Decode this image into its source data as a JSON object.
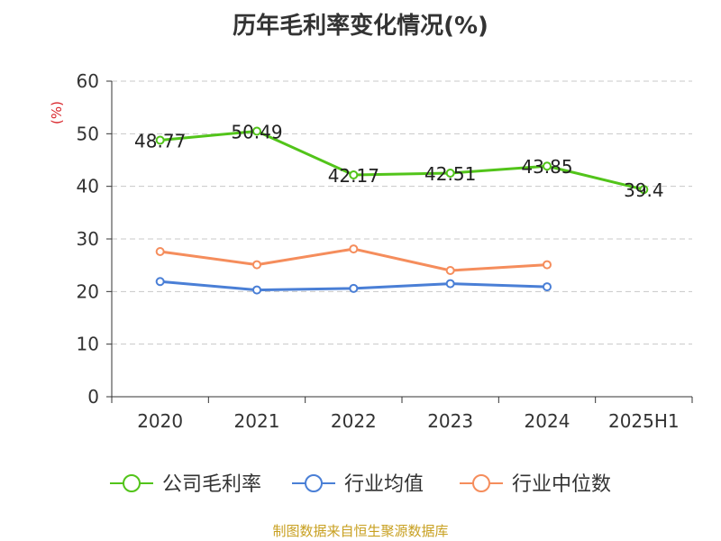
{
  "chart_data": {
    "type": "line",
    "title": "历年毛利率变化情况(%)",
    "ylabel": "(%)",
    "categories": [
      "2020",
      "2021",
      "2022",
      "2023",
      "2024",
      "2025H1"
    ],
    "ylim": [
      0,
      60
    ],
    "yticks": [
      0,
      10,
      20,
      30,
      40,
      50,
      60
    ],
    "grid": "horizontal-dashed",
    "legend_position": "bottom",
    "series": [
      {
        "name": "公司毛利率",
        "color": "#52c41a",
        "values": [
          48.77,
          50.49,
          42.17,
          42.51,
          43.85,
          39.4
        ],
        "labels": [
          "48.77",
          "50.49",
          "42.17",
          "42.51",
          "43.85",
          "39.4"
        ]
      },
      {
        "name": "行业均值",
        "color": "#4a7fd6",
        "values": [
          21.9,
          20.3,
          20.6,
          21.5,
          20.9,
          null
        ]
      },
      {
        "name": "行业中位数",
        "color": "#f58d5c",
        "values": [
          27.6,
          25.1,
          28.1,
          24.0,
          25.1,
          null
        ]
      }
    ]
  },
  "source": "制图数据来自恒生聚源数据库"
}
